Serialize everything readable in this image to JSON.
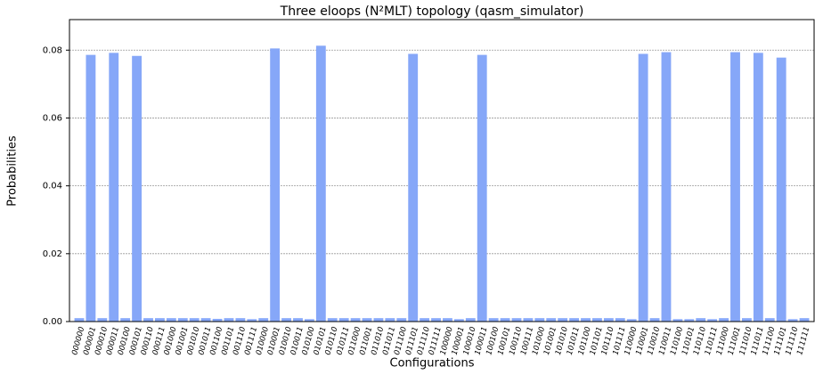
{
  "chart_data": {
    "type": "bar",
    "title": "Three eloops (N²MLT) topology (qasm_simulator)",
    "x_label": "Configurations",
    "y_label": "Probabilities",
    "categories": [
      "000000",
      "000001",
      "000010",
      "000011",
      "000100",
      "000101",
      "000110",
      "000111",
      "001000",
      "001001",
      "001010",
      "001011",
      "001100",
      "001101",
      "001110",
      "001111",
      "010000",
      "010001",
      "010010",
      "010011",
      "010100",
      "010101",
      "010110",
      "010111",
      "011000",
      "011001",
      "011010",
      "011011",
      "011100",
      "011101",
      "011110",
      "011111",
      "100000",
      "100001",
      "100010",
      "100011",
      "100100",
      "100101",
      "100110",
      "100111",
      "101000",
      "101001",
      "101010",
      "101011",
      "101100",
      "101101",
      "101110",
      "101111",
      "110000",
      "110001",
      "110010",
      "110011",
      "110100",
      "110101",
      "110110",
      "110111",
      "111000",
      "111001",
      "111010",
      "111011",
      "111100",
      "111101",
      "111110",
      "111111"
    ],
    "values": [
      0.001,
      0.0786,
      0.001,
      0.0792,
      0.001,
      0.0783,
      0.001,
      0.001,
      0.001,
      0.001,
      0.001,
      0.001,
      0.0008,
      0.001,
      0.001,
      0.0007,
      0.001,
      0.0805,
      0.001,
      0.001,
      0.0007,
      0.0813,
      0.001,
      0.001,
      0.001,
      0.001,
      0.001,
      0.001,
      0.001,
      0.0789,
      0.001,
      0.001,
      0.001,
      0.0007,
      0.001,
      0.0786,
      0.001,
      0.001,
      0.001,
      0.001,
      0.001,
      0.001,
      0.001,
      0.001,
      0.001,
      0.001,
      0.001,
      0.001,
      0.0007,
      0.0789,
      0.001,
      0.0794,
      0.0007,
      0.0007,
      0.001,
      0.0007,
      0.001,
      0.0794,
      0.001,
      0.0792,
      0.001,
      0.0778,
      0.0007,
      0.001
    ],
    "color": "#86a7f8",
    "ylim": [
      0,
      0.089
    ],
    "yticks": [
      {
        "value": 0,
        "label": "0.00"
      },
      0.02,
      0.04,
      0.06,
      0.08
    ],
    "grid": true
  }
}
